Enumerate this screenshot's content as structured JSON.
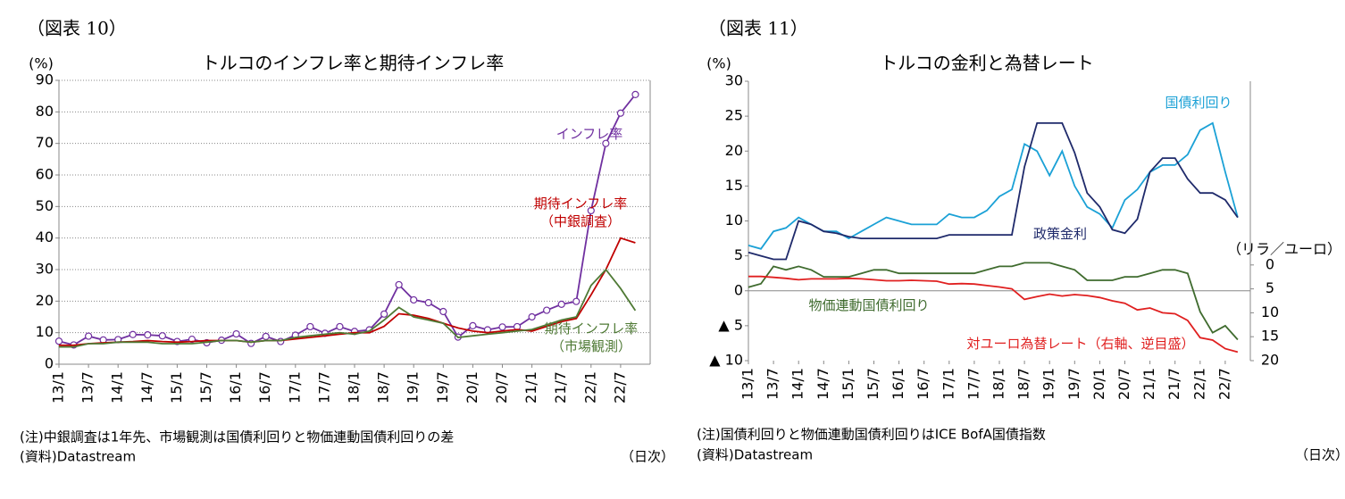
{
  "chart_data": [
    {
      "type": "line",
      "figure_label": "（図表 10）",
      "title": "トルコのインフレ率と期待インフレ率",
      "y_unit": "(%)",
      "note": "(注)中銀調査は1年先、市場観測は国債利回りと物価連動国債利回りの差",
      "source": "(資料)Datastream",
      "x_unit": "（日次）",
      "categories": [
        "13/1",
        null,
        "13/7",
        null,
        "14/1",
        null,
        "14/7",
        null,
        "15/1",
        null,
        "15/7",
        null,
        "16/1",
        null,
        "16/7",
        null,
        "17/1",
        null,
        "17/7",
        null,
        "18/1",
        null,
        "18/7",
        null,
        "19/1",
        null,
        "19/7",
        null,
        "20/1",
        null,
        "20/7",
        null,
        "21/1",
        null,
        "21/7",
        null,
        "22/1",
        null,
        "22/7",
        null
      ],
      "ylim": [
        0,
        90
      ],
      "yticks": [
        0,
        10,
        20,
        30,
        40,
        50,
        60,
        70,
        80,
        90
      ],
      "grid": true,
      "series": [
        {
          "name": "インフレ率",
          "color": "#7030a0",
          "markers": true,
          "values": [
            7.3,
            6.1,
            8.9,
            7.7,
            7.8,
            9.4,
            9.3,
            9.0,
            7.2,
            7.9,
            6.8,
            7.6,
            9.6,
            6.6,
            8.8,
            7.2,
            9.2,
            11.9,
            9.8,
            11.9,
            10.4,
            10.9,
            15.9,
            25.2,
            20.4,
            19.5,
            16.7,
            8.6,
            12.2,
            10.9,
            11.8,
            11.9,
            15.0,
            17.1,
            19.0,
            19.9,
            48.7,
            70.0,
            79.6,
            85.5
          ]
        },
        {
          "name": "期待インフレ率\n（中銀調査）",
          "color": "#c00000",
          "values": [
            6.0,
            6.0,
            6.5,
            6.8,
            7.0,
            7.2,
            7.5,
            7.2,
            7.0,
            7.2,
            7.5,
            7.5,
            7.5,
            7.0,
            7.5,
            7.5,
            8.0,
            8.5,
            9.0,
            9.5,
            10.0,
            10.0,
            12.0,
            16.0,
            15.5,
            14.5,
            13.0,
            11.5,
            10.5,
            10.0,
            10.5,
            11.0,
            10.5,
            12.0,
            13.5,
            14.5,
            22.0,
            30.0,
            40.0,
            38.5
          ]
        },
        {
          "name": "期待インフレ率\n（市場観測）",
          "color": "#4f7a35",
          "values": [
            5.5,
            5.5,
            6.5,
            6.5,
            7.0,
            7.0,
            7.0,
            6.5,
            6.5,
            6.5,
            7.0,
            7.5,
            7.5,
            7.0,
            7.5,
            7.5,
            8.5,
            9.0,
            9.5,
            10.0,
            9.5,
            10.5,
            14.0,
            18.0,
            15.0,
            14.0,
            13.0,
            8.5,
            9.0,
            9.5,
            10.0,
            10.5,
            11.0,
            12.5,
            14.0,
            15.0,
            25.0,
            30.0,
            24.0,
            17.0
          ]
        }
      ]
    },
    {
      "type": "line",
      "figure_label": "（図表 11）",
      "title": "トルコの金利と為替レート",
      "y_unit": "(%)",
      "y2_unit": "（リラ／ユーロ）",
      "note": "(注)国債利回りと物価連動国債利回りはICE BofA国債指数",
      "source": "(資料)Datastream",
      "x_unit": "（日次）",
      "categories": [
        "13/1",
        null,
        "13/7",
        null,
        "14/1",
        null,
        "14/7",
        null,
        "15/1",
        null,
        "15/7",
        null,
        "16/1",
        null,
        "16/7",
        null,
        "17/1",
        null,
        "17/7",
        null,
        "18/1",
        null,
        "18/7",
        null,
        "19/1",
        null,
        "19/7",
        null,
        "20/1",
        null,
        "20/7",
        null,
        "21/1",
        null,
        "21/7",
        null,
        "22/1",
        null,
        "22/7",
        null
      ],
      "ylim": [
        -10,
        30
      ],
      "yticks": [
        {
          "value": -10,
          "label": "▲ 10"
        },
        {
          "value": -5,
          "label": "▲ 5"
        },
        0,
        5,
        10,
        15,
        20,
        25,
        30
      ],
      "grid": false,
      "y2lim": [
        20,
        -38.4
      ],
      "y2ticks": [
        0,
        5,
        10,
        15,
        20
      ],
      "series": [
        {
          "name": "国債利回り",
          "color": "#1ba1d6",
          "values": [
            6.5,
            6.0,
            8.5,
            9.0,
            10.5,
            9.5,
            8.5,
            8.5,
            7.5,
            8.5,
            9.5,
            10.5,
            10.0,
            9.5,
            9.5,
            9.5,
            11.0,
            10.5,
            10.5,
            11.5,
            13.5,
            14.5,
            21.0,
            20.0,
            16.5,
            20.0,
            15.0,
            12.0,
            11.0,
            9.0,
            13.0,
            14.5,
            17.0,
            18.0,
            18.0,
            19.5,
            23.0,
            24.0,
            17.0,
            10.5
          ]
        },
        {
          "name": "政策金利",
          "color": "#1f2a6b",
          "values": [
            5.5,
            5.0,
            4.5,
            4.5,
            10.0,
            9.5,
            8.5,
            8.25,
            7.75,
            7.5,
            7.5,
            7.5,
            7.5,
            7.5,
            7.5,
            7.5,
            8.0,
            8.0,
            8.0,
            8.0,
            8.0,
            8.0,
            17.75,
            24.0,
            24.0,
            24.0,
            19.75,
            14.0,
            12.0,
            8.75,
            8.25,
            10.25,
            17.0,
            19.0,
            19.0,
            16.0,
            14.0,
            14.0,
            13.0,
            10.5
          ]
        },
        {
          "name": "物価連動国債利回り",
          "color": "#3f6b2e",
          "values": [
            0.5,
            1.0,
            3.5,
            3.0,
            3.5,
            3.0,
            2.0,
            2.0,
            2.0,
            2.5,
            3.0,
            3.0,
            2.5,
            2.5,
            2.5,
            2.5,
            2.5,
            2.5,
            2.5,
            3.0,
            3.5,
            3.5,
            4.0,
            4.0,
            4.0,
            3.5,
            3.0,
            1.5,
            1.5,
            1.5,
            2.0,
            2.0,
            2.5,
            3.0,
            3.0,
            2.5,
            -3.0,
            -6.0,
            -5.0,
            -7.0
          ]
        },
        {
          "name": "対ユーロ為替レート（右軸、逆目盛）",
          "color": "#e02020",
          "axis": "y2",
          "values": [
            2.4,
            2.4,
            2.6,
            2.8,
            3.1,
            2.9,
            2.9,
            2.9,
            2.8,
            2.9,
            3.1,
            3.3,
            3.3,
            3.2,
            3.3,
            3.4,
            4.0,
            3.9,
            4.0,
            4.3,
            4.6,
            5.0,
            7.2,
            6.6,
            6.1,
            6.5,
            6.2,
            6.4,
            6.8,
            7.5,
            8.0,
            9.4,
            9.0,
            10.0,
            10.2,
            11.6,
            15.2,
            15.7,
            17.5,
            18.2
          ]
        }
      ]
    }
  ]
}
